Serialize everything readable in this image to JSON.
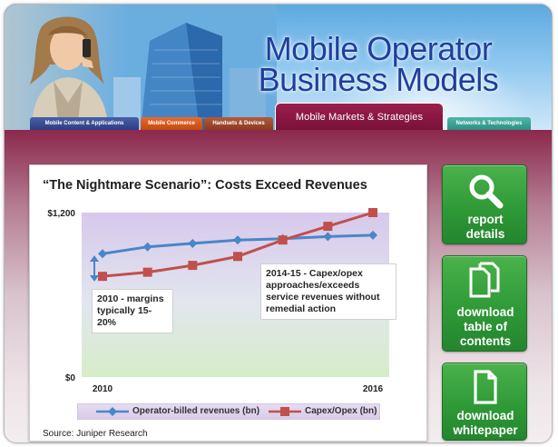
{
  "banner": {
    "title_line1": "Mobile Operator",
    "title_line2": "Business Models"
  },
  "tabs": [
    {
      "label": "Mobile Content & Applications"
    },
    {
      "label": "Mobile Commerce"
    },
    {
      "label": "Handsets & Devices"
    },
    {
      "label": "Mobile Markets & Strategies",
      "active": true
    },
    {
      "label": "Networks & Technologies"
    }
  ],
  "chart_card": {
    "title": "“The Nightmare Scenario”: Costs Exceed Revenues",
    "source": "Source: Juniper Research",
    "annotation_left_line1": "2010 - margins",
    "annotation_left_line2": "typically 15-20%",
    "annotation_right_line1": "2014-15 - Capex/opex",
    "annotation_right_line2": "approaches/exceeds",
    "annotation_right_line3": "service revenues without",
    "annotation_right_line4": "remedial action"
  },
  "chart_data": {
    "type": "line",
    "title": "“The Nightmare Scenario”: Costs Exceed Revenues",
    "x": [
      2010,
      2011,
      2012,
      2013,
      2014,
      2015,
      2016
    ],
    "x_tick_labels": [
      "2010",
      "2016"
    ],
    "y_tick_labels": [
      "$1,200",
      "$0"
    ],
    "ylim": [
      0,
      1200
    ],
    "series": [
      {
        "name": "Operator-billed revenues (bn)",
        "color": "#4a86c8",
        "marker": "diamond",
        "values": [
          900,
          950,
          975,
          1000,
          1010,
          1025,
          1035
        ]
      },
      {
        "name": "Capex/Opex (bn)",
        "color": "#c0504d",
        "marker": "square",
        "values": [
          735,
          765,
          815,
          880,
          1000,
          1100,
          1200
        ]
      }
    ],
    "legend_position": "bottom",
    "grid": false
  },
  "side_buttons": [
    {
      "line1": "report",
      "line2": "details",
      "icon": "magnifier-icon"
    },
    {
      "line1": "download",
      "line2": "table of",
      "line3": "contents",
      "icon": "documents-icon"
    },
    {
      "line1": "download",
      "line2": "whitepaper",
      "icon": "document-icon"
    }
  ],
  "colors": {
    "brand_maroon": "#7a1238",
    "button_green": "#2f9a38",
    "title_blue": "#1d3f9e"
  }
}
